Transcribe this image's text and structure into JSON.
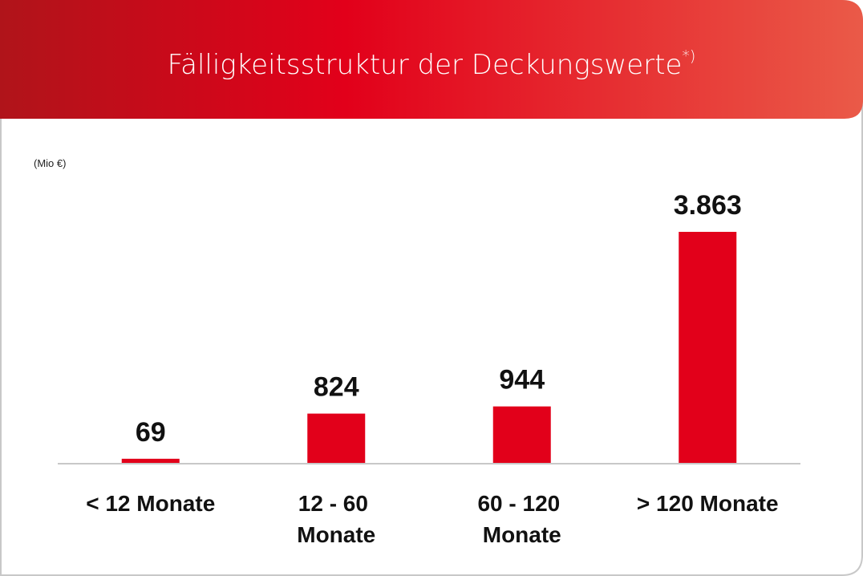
{
  "chart_data": {
    "type": "bar",
    "title": "Fälligkeitsstruktur der Deckungswerte",
    "title_note": "*)",
    "unit_label": "(Mio €)",
    "categories": [
      "< 12 Monate",
      "12 - 60 Monate",
      "60 - 120 Monate",
      "> 120 Monate"
    ],
    "values": [
      69,
      824,
      944,
      3863
    ],
    "value_labels": [
      "69",
      "824",
      "944",
      "3.863"
    ],
    "color": "#e2001a"
  }
}
